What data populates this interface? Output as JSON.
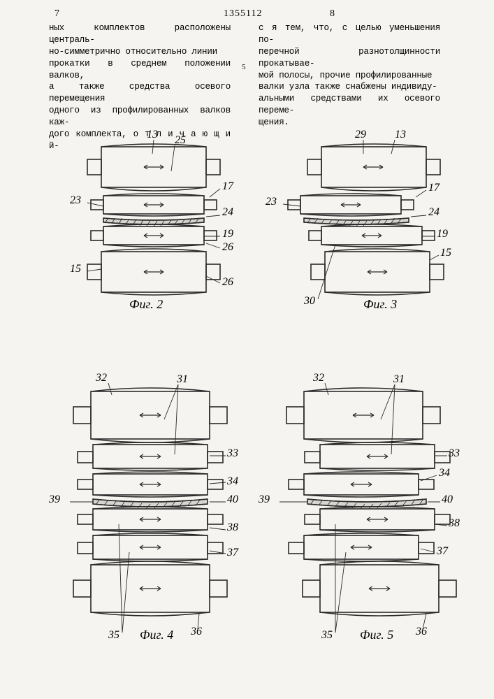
{
  "doc": {
    "number": "1355112",
    "col_left": "7",
    "col_right": "8",
    "line_marker": "5"
  },
  "text": {
    "left": "ных комплектов расположены централь-\nно-симметрично относительно линии\nпрокатки в среднем положении валков,\nа также средства осевого перемещения\nодного из профилированных валков каж-\nдого комплекта,  о т л и ч а ю щ и й-",
    "right": "с я  тем, что, с целью уменьшения по-\nперечной разнотолщинности прокатывае-\nмой полосы, прочие профилированные\nвалки узла также снабжены индивиду-\nальными средствами их осевого переме-\nщения."
  },
  "figures": {
    "fig2": {
      "caption": "Фиг. 2",
      "refs": [
        "13",
        "25",
        "23",
        "17",
        "24",
        "19",
        "15",
        "26",
        "26"
      ],
      "line_color": "#2a2a2a",
      "line_width": 1.6
    },
    "fig3": {
      "caption": "Фиг. 3",
      "refs": [
        "29",
        "13",
        "23",
        "17",
        "24",
        "19",
        "15",
        "30"
      ],
      "line_color": "#2a2a2a",
      "line_width": 1.6
    },
    "fig4": {
      "caption": "Фиг. 4",
      "refs": [
        "32",
        "31",
        "33",
        "34",
        "39",
        "40",
        "38",
        "37",
        "35",
        "36"
      ],
      "line_color": "#2a2a2a",
      "line_width": 1.6
    },
    "fig5": {
      "caption": "Фиг. 5",
      "refs": [
        "32",
        "31",
        "33",
        "34",
        "39",
        "40",
        "38",
        "37",
        "35",
        "36"
      ],
      "line_color": "#2a2a2a",
      "line_width": 1.6
    }
  },
  "style": {
    "bg": "#f5f4f0",
    "stroke": "#2a2a2a",
    "hatch": "#2a2a2a",
    "font_italic_size": 18,
    "ref_size": 16
  }
}
